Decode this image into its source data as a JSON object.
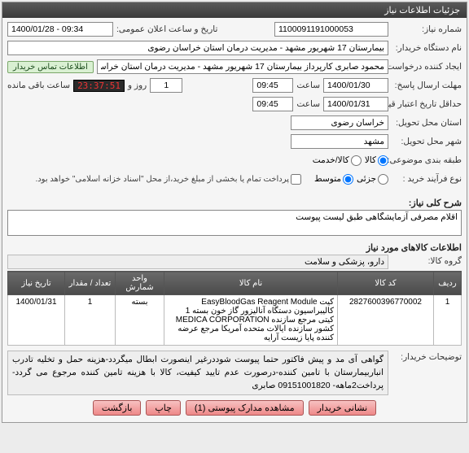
{
  "panel_title": "جزئیات اطلاعات نیاز",
  "fields": {
    "need_no_label": "شماره نیاز:",
    "need_no": "1100091191000053",
    "announce_label": "تاریخ و ساعت اعلان عمومی:",
    "announce_value": "1400/01/28 - 09:34",
    "buyer_org_label": "نام دستگاه خریدار:",
    "buyer_org": "بیمارستان 17 شهریور مشهد - مدیریت درمان استان خراسان رضوی",
    "creator_label": "ایجاد کننده درخواست:",
    "creator": "محمود صابری کارپرداز بیمارستان 17 شهریور مشهد - مدیریت درمان استان خراس",
    "contact_chip": "اطلاعات تماس خریدار",
    "deadline_send_label": "مهلت ارسال پاسخ:",
    "deadline_send_date": "1400/01/30",
    "deadline_send_time": "09:45",
    "time_word": "ساعت",
    "remaining_days": "1",
    "remaining_days_word": "روز و",
    "remaining_timer": "23:37:51",
    "remaining_suffix": "ساعت باقی مانده",
    "min_validity_label": "حداقل تاریخ اعتبار قیمت: تا تاریخ:",
    "min_validity_date": "1400/01/31",
    "min_validity_time": "09:45",
    "delivery_prov_label": "استان محل تحویل:",
    "delivery_prov": "خراسان رضوی",
    "delivery_city_label": "شهر محل تحویل:",
    "delivery_city": "مشهد",
    "budget_label": "طبقه بندی موضوعی:",
    "budget_opts": {
      "goods": "کالا",
      "service": "کالا/خدمت"
    },
    "budget_selected": "goods",
    "purchase_type_label": "نوع فرآیند خرید :",
    "purchase_opts": {
      "low": "جزئی",
      "mid": "متوسط"
    },
    "purchase_selected": "mid",
    "purchase_note": "پرداخت تمام یا بخشی از مبلغ خرید،از محل \"اسناد خزانه اسلامی\" خواهد بود.",
    "desc_title": "شرح کلی نیاز:",
    "desc_text": "اقلام مصرفی آزمایشگاهی طبق لیست پیوست",
    "items_section_title": "اطلاعات کالاهای مورد نیاز",
    "group_label": "گروه کالا:",
    "group_value": "دارو، پزشکی و سلامت"
  },
  "table": {
    "headers": {
      "row": "ردیف",
      "code": "کد کالا",
      "name": "نام کالا",
      "unit": "واحد شمارش",
      "qty": "تعداد / مقدار",
      "date": "تاریخ نیاز"
    },
    "rows": [
      {
        "row": "1",
        "code": "2827600396770002",
        "name": "کیت EasyBloodGas Reagent Module کالیبراسیون دستگاه آنالیزور گاز خون بسته 1 کیتی مرجع سازنده MEDICA CORPORATION کشور سازنده ایالات متحده آمریکا مرجع عرضه کننده پایا زیست آرایه",
        "unit": "بسته",
        "qty": "1",
        "date": "1400/01/31"
      }
    ]
  },
  "notes": {
    "label": "توضیحات خریدار:",
    "text": "گواهی آی مد و پیش فاکتور حتما پیوست شوددرغیر اینصورت ابطال میگردد-هزینه حمل و تخلیه تادرب انباربیمارستان با تامین کننده-درصورت عدم تایید کیفیت، کالا با هزینه تامین کننده مرجوع می گردد-پرداخت2ماهه- 09151001820 صابری"
  },
  "buttons": {
    "back": "بازگشت",
    "attachments": "مشاهده مدارک پیوستی (1)",
    "print": "چاپ",
    "addr": "نشانی خریدار"
  }
}
